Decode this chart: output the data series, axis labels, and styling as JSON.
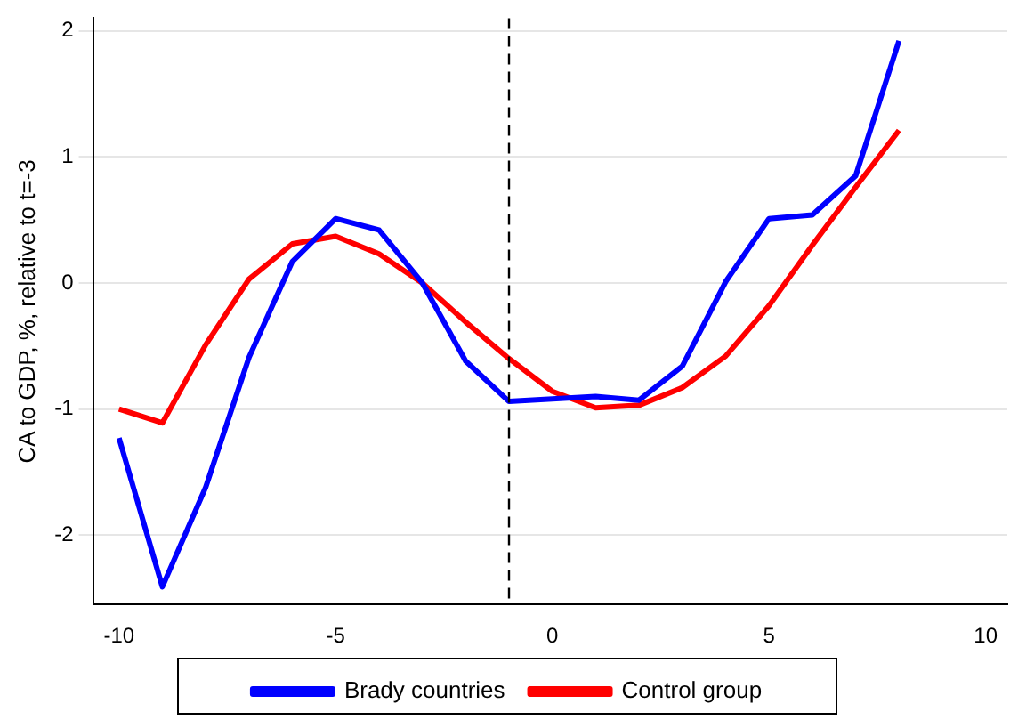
{
  "chart_data": {
    "type": "line",
    "ylabel": "CA to GDP, %, relative to t=-3",
    "x": [
      -10,
      -9,
      -8,
      -7,
      -6,
      -5,
      -4,
      -3,
      -2,
      -1,
      0,
      1,
      2,
      3,
      4,
      5,
      6,
      7,
      8
    ],
    "series": [
      {
        "name": "Brady countries",
        "color": "#0000ff",
        "values": [
          -1.23,
          -2.41,
          -1.62,
          -0.59,
          0.17,
          0.51,
          0.42,
          0,
          -0.62,
          -0.94,
          -0.92,
          -0.9,
          -0.93,
          -0.66,
          0.01,
          0.51,
          0.54,
          0.85,
          1.92
        ]
      },
      {
        "name": "Control group",
        "color": "#ff0000",
        "values": [
          -1.0,
          -1.11,
          -0.49,
          0.03,
          0.31,
          0.37,
          0.23,
          0,
          -0.31,
          -0.6,
          -0.86,
          -0.99,
          -0.97,
          -0.83,
          -0.58,
          -0.18,
          0.3,
          0.76,
          1.21
        ]
      }
    ],
    "xlim": [
      -10.6,
      10.5
    ],
    "xticks": [
      -10,
      -5,
      0,
      5,
      10
    ],
    "ylim": [
      -2.55,
      2.1
    ],
    "yticks": [
      -2,
      -1,
      0,
      1,
      2
    ],
    "ref_lines": [
      {
        "axis": "x",
        "value": -1,
        "color": "#000000",
        "line_style": "dashed"
      }
    ],
    "grid": "y",
    "legend": "bottom",
    "marker": "none",
    "line_style": "solid"
  }
}
